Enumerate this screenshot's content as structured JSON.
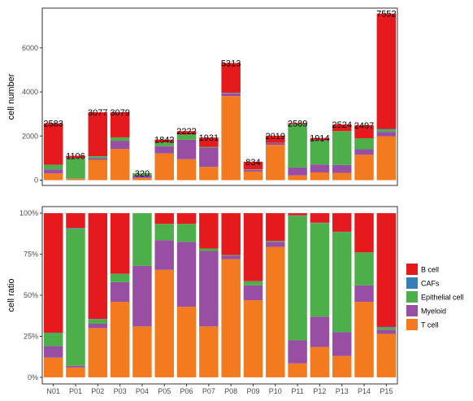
{
  "chart_data": [
    {
      "type": "bar",
      "stacked": true,
      "ylabel": "cell number",
      "xlabel": "",
      "ylim": [
        0,
        7800
      ],
      "yticks": [
        0,
        2000,
        4000,
        6000
      ],
      "grid": false,
      "categories": [
        "N01",
        "P01",
        "P02",
        "P03",
        "P04",
        "P05",
        "P06",
        "P07",
        "P08",
        "P09",
        "P10",
        "P11",
        "P12",
        "P13",
        "P14",
        "P15"
      ],
      "totals": [
        2583,
        1106,
        3077,
        3079,
        320,
        1842,
        2222,
        1931,
        5313,
        834,
        2019,
        2589,
        1914,
        2524,
        2497,
        7552
      ],
      "total_labels": [
        "2583",
        "1106",
        "3077",
        "3079",
        "320",
        "1842",
        "2222",
        "1931",
        "5313",
        "834",
        "2019",
        "2589",
        "1914",
        "2524",
        "2497",
        "7552"
      ],
      "series": [
        {
          "name": "T cell",
          "values": [
            310,
            66,
            918,
            1416,
            100,
            1210,
            950,
            600,
            3810,
            390,
            1600,
            215,
            350,
            330,
            1150,
            1990
          ]
        },
        {
          "name": "Myeloid",
          "values": [
            180,
            10,
            80,
            370,
            118,
            330,
            880,
            880,
            130,
            80,
            80,
            360,
            360,
            360,
            250,
            200
          ]
        },
        {
          "name": "Epithelial cell",
          "values": [
            205,
            924,
            80,
            150,
            101,
            170,
            240,
            30,
            20,
            20,
            10,
            1960,
            1090,
            1530,
            495,
            100
          ]
        },
        {
          "name": "CAFs",
          "values": [
            5,
            6,
            9,
            3,
            0,
            0,
            0,
            0,
            5,
            1,
            2,
            4,
            4,
            4,
            2,
            32
          ]
        },
        {
          "name": "B cell",
          "values": [
            1883,
            100,
            1990,
            1140,
            1,
            132,
            152,
            421,
            1348,
            343,
            327,
            50,
            110,
            300,
            600,
            5230
          ]
        }
      ],
      "colors": {
        "B cell": "#E41A1C",
        "CAFs": "#377EB8",
        "Epithelial cell": "#4DAF4A",
        "Myeloid": "#984EA3",
        "T cell": "#F47A20"
      }
    },
    {
      "type": "bar",
      "stacked": true,
      "percent": true,
      "ylabel": "cell ratio",
      "xlabel": "",
      "ylim": [
        0,
        100
      ],
      "yticks": [
        "0%",
        "25%",
        "50%",
        "75%",
        "100%"
      ],
      "grid": false,
      "categories": [
        "N01",
        "P01",
        "P02",
        "P03",
        "P04",
        "P05",
        "P06",
        "P07",
        "P08",
        "P09",
        "P10",
        "P11",
        "P12",
        "P13",
        "P14",
        "P15"
      ],
      "series": [
        {
          "name": "T cell",
          "values": [
            12,
            6,
            30,
            46,
            31,
            65.5,
            43,
            31,
            72,
            47,
            79.5,
            8.5,
            18.5,
            13,
            46,
            26.5
          ]
        },
        {
          "name": "Myeloid",
          "values": [
            7,
            1,
            2.7,
            12,
            37,
            18,
            39.5,
            46,
            2,
            9,
            3,
            14,
            18.5,
            14.5,
            10,
            2.5
          ]
        },
        {
          "name": "Epithelial cell",
          "values": [
            8,
            83.5,
            2.6,
            5,
            32,
            10,
            11,
            1.5,
            0.4,
            2.5,
            0.5,
            76,
            57,
            61,
            20,
            1.3
          ]
        },
        {
          "name": "CAFs",
          "values": [
            0.2,
            0.5,
            0.3,
            0.1,
            0,
            0,
            0,
            0,
            0.1,
            0.1,
            0.1,
            0.2,
            0.2,
            0.2,
            0.1,
            0.4
          ]
        },
        {
          "name": "B cell",
          "values": [
            72.8,
            9,
            64.4,
            36.9,
            0,
            6.5,
            6.5,
            21.5,
            25.5,
            41.4,
            16.9,
            1.3,
            5.8,
            11.3,
            23.9,
            69.3
          ]
        }
      ],
      "colors": {
        "B cell": "#E41A1C",
        "CAFs": "#377EB8",
        "Epithelial cell": "#4DAF4A",
        "Myeloid": "#984EA3",
        "T cell": "#F47A20"
      }
    }
  ],
  "legend": {
    "placement": "right",
    "items": [
      "B cell",
      "CAFs",
      "Epithelial cell",
      "Myeloid",
      "T cell"
    ]
  }
}
